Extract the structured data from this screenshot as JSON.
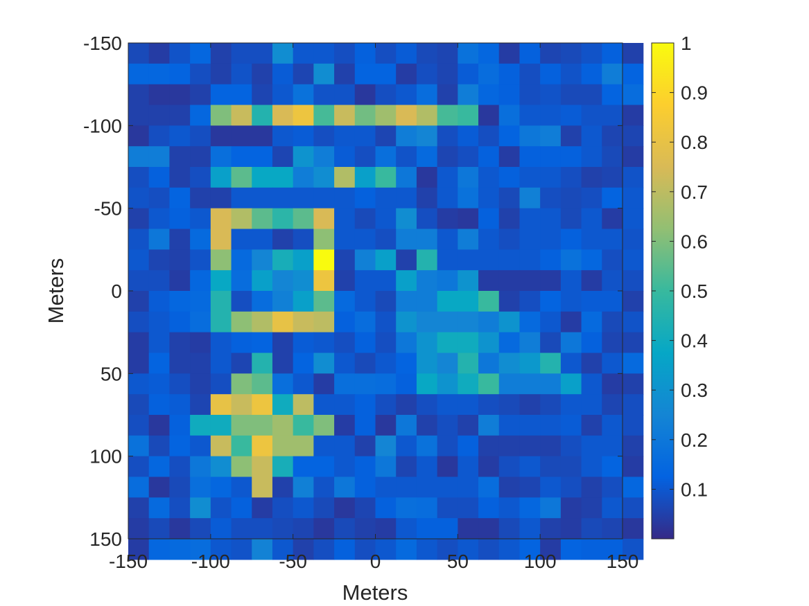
{
  "chart_data": {
    "type": "heatmap",
    "title": "",
    "xlabel": "Meters",
    "ylabel": "Meters",
    "x_range": [
      -150,
      150
    ],
    "y_range": [
      -150,
      150
    ],
    "y_direction": "top-to-bottom",
    "cell_size": 12.5,
    "x_ticks": [
      "-150",
      "-100",
      "-50",
      "0",
      "50",
      "100",
      "150"
    ],
    "y_ticks": [
      "-150",
      "-100",
      "-50",
      "0",
      "50",
      "100",
      "150"
    ],
    "colormap": "parula",
    "clim": [
      0,
      1
    ],
    "colorbar_ticks": [
      "0.1",
      "0.2",
      "0.3",
      "0.4",
      "0.5",
      "0.6",
      "0.7",
      "0.8",
      "0.9",
      "1"
    ],
    "values": [
      [
        0.07,
        0.04,
        0.09,
        0.14,
        0.05,
        0.08,
        0.08,
        0.28,
        0.1,
        0.1,
        0.08,
        0.12,
        0.08,
        0.11,
        0.07,
        0.06,
        0.18,
        0.14,
        0.04,
        0.12,
        0.06,
        0.07,
        0.09,
        0.12,
        0.05
      ],
      [
        0.14,
        0.14,
        0.13,
        0.08,
        0.05,
        0.09,
        0.05,
        0.11,
        0.06,
        0.28,
        0.05,
        0.13,
        0.13,
        0.04,
        0.08,
        0.06,
        0.11,
        0.16,
        0.12,
        0.08,
        0.12,
        0.09,
        0.12,
        0.22,
        0.13
      ],
      [
        0.05,
        0.03,
        0.03,
        0.05,
        0.13,
        0.13,
        0.06,
        0.1,
        0.18,
        0.09,
        0.09,
        0.03,
        0.08,
        0.1,
        0.16,
        0.05,
        0.22,
        0.14,
        0.12,
        0.08,
        0.09,
        0.07,
        0.07,
        0.13,
        0.16
      ],
      [
        0.05,
        0.05,
        0.05,
        0.14,
        0.6,
        0.72,
        0.45,
        0.75,
        0.82,
        0.52,
        0.72,
        0.58,
        0.65,
        0.75,
        0.68,
        0.52,
        0.5,
        0.03,
        0.17,
        0.1,
        0.1,
        0.11,
        0.09,
        0.09,
        0.04
      ],
      [
        0.03,
        0.08,
        0.1,
        0.08,
        0.03,
        0.03,
        0.03,
        0.1,
        0.11,
        0.08,
        0.1,
        0.1,
        0.06,
        0.22,
        0.25,
        0.08,
        0.11,
        0.08,
        0.13,
        0.2,
        0.22,
        0.05,
        0.1,
        0.06,
        0.06
      ],
      [
        0.22,
        0.22,
        0.05,
        0.05,
        0.17,
        0.13,
        0.13,
        0.06,
        0.3,
        0.22,
        0.11,
        0.08,
        0.17,
        0.09,
        0.15,
        0.06,
        0.08,
        0.12,
        0.04,
        0.12,
        0.12,
        0.12,
        0.1,
        0.07,
        0.04
      ],
      [
        0.08,
        0.12,
        0.05,
        0.08,
        0.35,
        0.55,
        0.38,
        0.38,
        0.22,
        0.28,
        0.68,
        0.35,
        0.5,
        0.2,
        0.03,
        0.1,
        0.2,
        0.1,
        0.12,
        0.1,
        0.1,
        0.08,
        0.05,
        0.06,
        0.09
      ],
      [
        0.09,
        0.08,
        0.13,
        0.05,
        0.05,
        0.1,
        0.1,
        0.1,
        0.1,
        0.1,
        0.1,
        0.12,
        0.1,
        0.1,
        0.05,
        0.1,
        0.18,
        0.1,
        0.07,
        0.23,
        0.08,
        0.07,
        0.08,
        0.13,
        0.1
      ],
      [
        0.05,
        0.1,
        0.12,
        0.1,
        0.75,
        0.68,
        0.55,
        0.47,
        0.55,
        0.75,
        0.1,
        0.07,
        0.1,
        0.28,
        0.08,
        0.04,
        0.03,
        0.12,
        0.05,
        0.1,
        0.1,
        0.07,
        0.1,
        0.04,
        0.1
      ],
      [
        0.09,
        0.2,
        0.05,
        0.15,
        0.75,
        0.1,
        0.1,
        0.05,
        0.08,
        0.62,
        0.1,
        0.1,
        0.08,
        0.22,
        0.22,
        0.1,
        0.22,
        0.1,
        0.08,
        0.1,
        0.1,
        0.12,
        0.1,
        0.1,
        0.09
      ],
      [
        0.1,
        0.06,
        0.05,
        0.09,
        0.62,
        0.15,
        0.25,
        0.42,
        0.35,
        1.0,
        0.06,
        0.23,
        0.35,
        0.05,
        0.45,
        0.1,
        0.1,
        0.1,
        0.1,
        0.1,
        0.12,
        0.18,
        0.14,
        0.08,
        0.1
      ],
      [
        0.08,
        0.08,
        0.04,
        0.14,
        0.38,
        0.16,
        0.35,
        0.25,
        0.28,
        0.82,
        0.05,
        0.1,
        0.1,
        0.35,
        0.22,
        0.2,
        0.3,
        0.04,
        0.04,
        0.04,
        0.04,
        0.1,
        0.04,
        0.09,
        0.08
      ],
      [
        0.05,
        0.11,
        0.14,
        0.15,
        0.45,
        0.08,
        0.16,
        0.23,
        0.35,
        0.55,
        0.15,
        0.1,
        0.07,
        0.22,
        0.22,
        0.38,
        0.38,
        0.5,
        0.05,
        0.08,
        0.13,
        0.1,
        0.11,
        0.11,
        0.05
      ],
      [
        0.08,
        0.1,
        0.12,
        0.16,
        0.45,
        0.62,
        0.68,
        0.8,
        0.72,
        0.7,
        0.12,
        0.16,
        0.09,
        0.3,
        0.25,
        0.25,
        0.25,
        0.22,
        0.3,
        0.15,
        0.1,
        0.04,
        0.15,
        0.07,
        0.09
      ],
      [
        0.04,
        0.1,
        0.05,
        0.04,
        0.1,
        0.12,
        0.13,
        0.05,
        0.11,
        0.1,
        0.08,
        0.12,
        0.08,
        0.2,
        0.3,
        0.4,
        0.4,
        0.3,
        0.15,
        0.22,
        0.07,
        0.2,
        0.12,
        0.06,
        0.06
      ],
      [
        0.04,
        0.13,
        0.05,
        0.05,
        0.1,
        0.06,
        0.45,
        0.05,
        0.13,
        0.28,
        0.1,
        0.07,
        0.1,
        0.13,
        0.3,
        0.25,
        0.45,
        0.2,
        0.28,
        0.32,
        0.45,
        0.1,
        0.05,
        0.1,
        0.15
      ],
      [
        0.1,
        0.11,
        0.08,
        0.05,
        0.08,
        0.6,
        0.55,
        0.17,
        0.1,
        0.04,
        0.17,
        0.17,
        0.16,
        0.12,
        0.38,
        0.3,
        0.4,
        0.5,
        0.22,
        0.22,
        0.22,
        0.35,
        0.1,
        0.04,
        0.05
      ],
      [
        0.07,
        0.12,
        0.11,
        0.06,
        0.8,
        0.72,
        0.82,
        0.4,
        0.7,
        0.1,
        0.1,
        0.12,
        0.08,
        0.05,
        0.08,
        0.1,
        0.1,
        0.08,
        0.07,
        0.05,
        0.07,
        0.1,
        0.1,
        0.06,
        0.08
      ],
      [
        0.08,
        0.03,
        0.12,
        0.4,
        0.4,
        0.6,
        0.6,
        0.65,
        0.5,
        0.6,
        0.04,
        0.12,
        0.03,
        0.2,
        0.05,
        0.08,
        0.05,
        0.22,
        0.1,
        0.1,
        0.1,
        0.11,
        0.05,
        0.1,
        0.08
      ],
      [
        0.18,
        0.07,
        0.13,
        0.1,
        0.72,
        0.5,
        0.82,
        0.65,
        0.65,
        0.1,
        0.1,
        0.05,
        0.25,
        0.1,
        0.18,
        0.08,
        0.12,
        0.05,
        0.05,
        0.05,
        0.05,
        0.08,
        0.1,
        0.1,
        0.05
      ],
      [
        0.08,
        0.14,
        0.08,
        0.2,
        0.28,
        0.62,
        0.72,
        0.42,
        0.13,
        0.13,
        0.1,
        0.12,
        0.2,
        0.06,
        0.1,
        0.03,
        0.1,
        0.04,
        0.08,
        0.1,
        0.07,
        0.07,
        0.1,
        0.13,
        0.04
      ],
      [
        0.16,
        0.03,
        0.07,
        0.17,
        0.14,
        0.1,
        0.72,
        0.05,
        0.23,
        0.09,
        0.2,
        0.12,
        0.1,
        0.1,
        0.1,
        0.1,
        0.1,
        0.16,
        0.05,
        0.06,
        0.1,
        0.08,
        0.05,
        0.08,
        0.14
      ],
      [
        0.05,
        0.15,
        0.08,
        0.28,
        0.09,
        0.12,
        0.04,
        0.08,
        0.1,
        0.07,
        0.03,
        0.06,
        0.12,
        0.17,
        0.16,
        0.08,
        0.08,
        0.12,
        0.1,
        0.14,
        0.2,
        0.04,
        0.05,
        0.1,
        0.08
      ],
      [
        0.04,
        0.07,
        0.03,
        0.07,
        0.11,
        0.08,
        0.08,
        0.07,
        0.06,
        0.03,
        0.07,
        0.05,
        0.04,
        0.1,
        0.12,
        0.12,
        0.03,
        0.03,
        0.07,
        0.1,
        0.05,
        0.04,
        0.07,
        0.06,
        0.03
      ],
      [
        0.04,
        0.14,
        0.15,
        0.16,
        0.1,
        0.09,
        0.24,
        0.1,
        0.05,
        0.08,
        0.12,
        0.08,
        0.1,
        0.15,
        0.1,
        0.08,
        0.1,
        0.08,
        0.1,
        0.13,
        0.04,
        0.13,
        0.12,
        0.12,
        0.09
      ]
    ]
  }
}
